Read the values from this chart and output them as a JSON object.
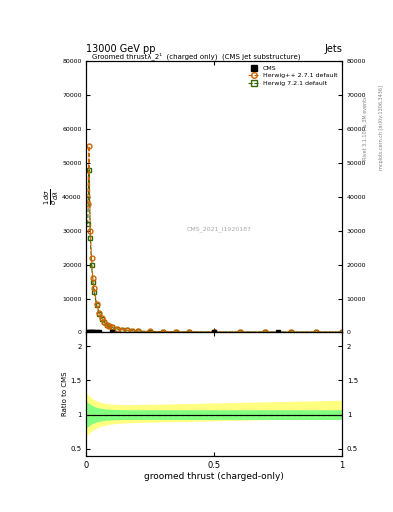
{
  "title_top": "13000 GeV pp",
  "title_top_right": "Jets",
  "plot_title": "Groomed thrustλ_2¹  (charged only)  (CMS jet substructure)",
  "xlabel": "groomed thrust (charged-only)",
  "ylabel_ratio": "Ratio to CMS",
  "watermark": "CMS_2021_I1920187",
  "right_label_top": "Rivet 3.1.10, ≥ 3M events",
  "right_label_bottom": "mcplots.cern.ch [arXiv:1306.3436]",
  "cms_color": "#000000",
  "herwig_pp_color": "#cc6600",
  "herwig7_color": "#336600",
  "herwig_pp_band_color": "#ffff80",
  "herwig7_band_color": "#80ff80",
  "x_data": [
    0.005,
    0.01,
    0.015,
    0.02,
    0.025,
    0.03,
    0.04,
    0.05,
    0.06,
    0.07,
    0.08,
    0.09,
    0.1,
    0.12,
    0.14,
    0.16,
    0.18,
    0.2,
    0.25,
    0.3,
    0.35,
    0.4,
    0.5,
    0.6,
    0.7,
    0.8,
    0.9,
    1.0
  ],
  "herwig_pp_y": [
    38000,
    55000,
    30000,
    22000,
    16000,
    13000,
    8500,
    5800,
    4200,
    3100,
    2300,
    1900,
    1600,
    1100,
    800,
    630,
    500,
    420,
    290,
    230,
    195,
    175,
    155,
    145,
    140,
    138,
    137,
    135
  ],
  "herwig7_y": [
    32000,
    48000,
    28000,
    20000,
    15000,
    12000,
    8000,
    5500,
    4000,
    2950,
    2150,
    1800,
    1500,
    1000,
    760,
    600,
    470,
    395,
    275,
    215,
    188,
    168,
    148,
    138,
    133,
    131,
    130,
    128
  ],
  "cms_x": [
    0.005,
    0.01,
    0.015,
    0.02,
    0.025,
    0.03,
    0.04,
    0.05,
    0.1,
    0.5,
    0.75
  ],
  "cms_y": [
    0,
    0,
    0,
    0,
    0,
    0,
    0,
    0,
    0,
    0,
    0
  ],
  "ylim_main": [
    0,
    80000
  ],
  "ylim_ratio": [
    0.4,
    2.2
  ],
  "xlim": [
    0.0,
    1.0
  ],
  "yticks_main": [
    0,
    10000,
    20000,
    30000,
    40000,
    50000,
    60000,
    70000,
    80000
  ],
  "ytick_labels_main": [
    "0",
    "10000",
    "20000",
    "30000",
    "40000",
    "50000",
    "60000",
    "70000",
    "80000"
  ],
  "yticks_ratio": [
    0.5,
    1.0,
    1.5,
    2.0
  ],
  "xticks": [
    0.0,
    0.5,
    1.0
  ],
  "xtick_labels": [
    "0",
    "0.5",
    "1"
  ]
}
